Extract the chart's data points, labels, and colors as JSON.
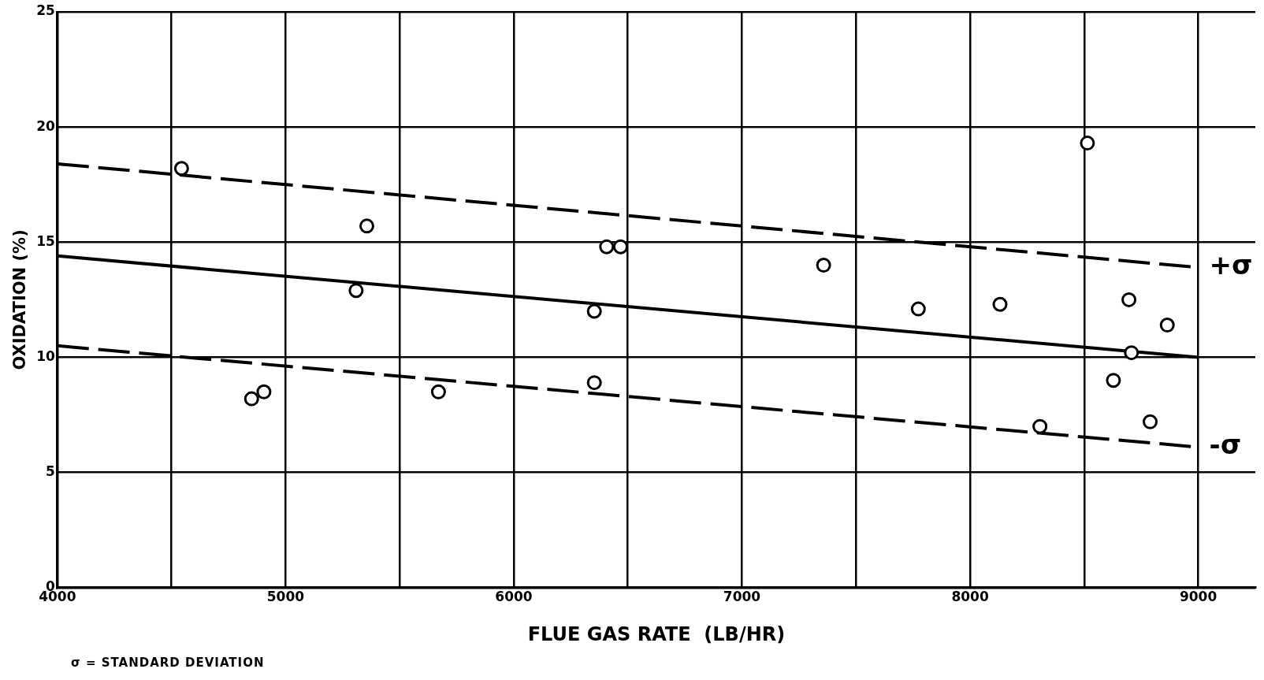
{
  "chart_data": {
    "type": "scatter",
    "xlabel": "FLUE GAS RATE  (LB/HR)",
    "ylabel": "OXIDATION (%)",
    "xlim": [
      4000,
      9250
    ],
    "ylim": [
      0,
      25
    ],
    "xticks": [
      4000,
      {
        "value": 4500,
        "label": null
      },
      5000,
      {
        "value": 5500,
        "label": null
      },
      6000,
      {
        "value": 6500,
        "label": null
      },
      7000,
      {
        "value": 7500,
        "label": null
      },
      8000,
      {
        "value": 8500,
        "label": null
      },
      9000
    ],
    "yticks": [
      0,
      5,
      10,
      15,
      20,
      25
    ],
    "grid": true,
    "marker": "circle",
    "series": [
      {
        "color": "#000000",
        "x": [
          4544,
          4851,
          4905,
          5309,
          5356,
          5670,
          6353,
          6353,
          6407,
          6468,
          7358,
          7773,
          8131,
          8306,
          8514,
          8628,
          8696,
          8707,
          8789,
          8864
        ],
        "values": [
          18.2,
          8.2,
          8.5,
          12.9,
          15.7,
          8.5,
          12.0,
          8.9,
          14.8,
          14.8,
          14.0,
          12.1,
          12.3,
          7.0,
          19.3,
          9.0,
          12.5,
          10.2,
          7.2,
          11.4
        ]
      },
      {
        "type": "line",
        "color": "#000000",
        "x": [
          4000,
          9000
        ],
        "values": [
          14.4,
          10.0
        ],
        "line_style": "solid",
        "marker": "none"
      },
      {
        "type": "line",
        "color": "#000000",
        "x": [
          4000,
          9000
        ],
        "values": [
          18.4,
          13.9
        ],
        "line_style": "dashed",
        "marker": "none"
      },
      {
        "type": "line",
        "color": "#000000",
        "x": [
          4000,
          9000
        ],
        "values": [
          10.5,
          6.1
        ],
        "line_style": "dashed",
        "marker": "none"
      }
    ],
    "annotations": [
      {
        "text": "+σ",
        "x": 9000,
        "y": 13.9
      },
      {
        "text": "-σ",
        "x": 9000,
        "y": 6.1
      },
      "σ = STANDARD DEVIATION"
    ]
  }
}
